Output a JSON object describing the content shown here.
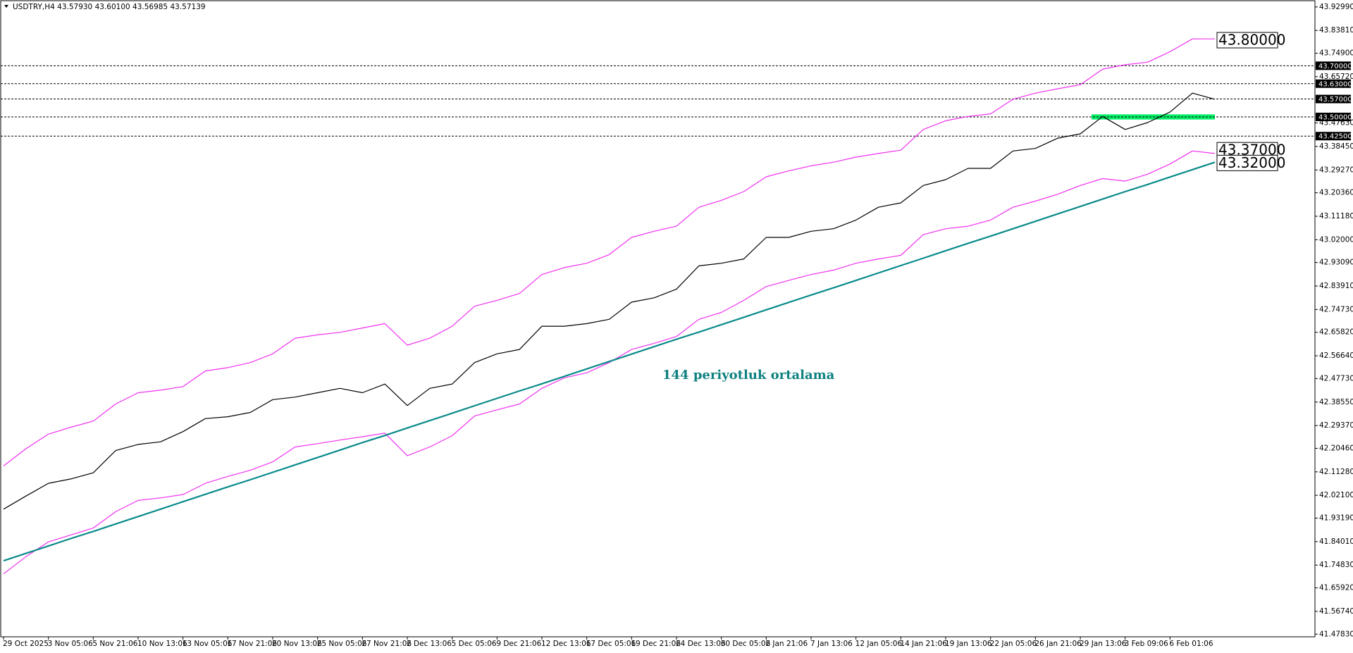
{
  "chart_data": {
    "type": "line",
    "title": "USDTRY,H4  43.57930 43.60100 43.56985 43.57139",
    "annotation": "144 periyotluk ortalama",
    "categories": [
      "29 Oct 2025",
      null,
      "3 Nov 05:06",
      null,
      "5 Nov 21:06",
      null,
      "10 Nov 13:06",
      null,
      "13 Nov 05:06",
      null,
      "17 Nov 21:06",
      null,
      "20 Nov 13:06",
      null,
      "25 Nov 05:06",
      null,
      "27 Nov 21:06",
      null,
      "2 Dec 13:06",
      null,
      "5 Dec 05:06",
      null,
      "9 Dec 21:06",
      null,
      "12 Dec 13:06",
      null,
      "17 Dec 05:06",
      null,
      "19 Dec 21:06",
      null,
      "24 Dec 13:06",
      null,
      "30 Dec 05:06",
      null,
      "2 Jan 21:06",
      null,
      "7 Jan 13:06",
      null,
      "12 Jan 05:06",
      null,
      "14 Jan 21:06",
      null,
      "19 Jan 13:06",
      null,
      "22 Jan 05:06",
      null,
      "26 Jan 21:06",
      null,
      "29 Jan 13:06",
      null,
      "3 Feb 09:06",
      null,
      "6 Feb 01:06",
      null,
      null
    ],
    "series": [
      {
        "color": "#000000",
        "values": [
          41.967,
          42.018,
          42.068,
          42.085,
          42.109,
          42.196,
          42.22,
          42.23,
          42.27,
          42.321,
          42.328,
          42.345,
          42.395,
          42.405,
          42.422,
          42.439,
          42.422,
          42.456,
          42.372,
          42.439,
          42.456,
          42.54,
          42.574,
          42.591,
          42.682,
          42.682,
          42.692,
          42.709,
          42.776,
          42.793,
          42.827,
          42.918,
          42.928,
          42.945,
          43.029,
          43.029,
          43.053,
          43.063,
          43.097,
          43.147,
          43.164,
          43.232,
          43.255,
          43.299,
          43.299,
          43.367,
          43.377,
          43.417,
          43.434,
          43.502,
          43.451,
          43.478,
          43.519,
          43.593,
          43.569
        ]
      },
      {
        "color": "#f030f0",
        "values": [
          42.136,
          42.203,
          42.26,
          42.287,
          42.311,
          42.378,
          42.422,
          42.432,
          42.446,
          42.507,
          42.52,
          42.54,
          42.574,
          42.635,
          42.648,
          42.658,
          42.675,
          42.692,
          42.608,
          42.635,
          42.682,
          42.76,
          42.783,
          42.81,
          42.884,
          42.911,
          42.928,
          42.962,
          43.029,
          43.053,
          43.073,
          43.147,
          43.174,
          43.208,
          43.266,
          43.289,
          43.309,
          43.323,
          43.343,
          43.357,
          43.37,
          43.451,
          43.485,
          43.502,
          43.512,
          43.569,
          43.593,
          43.61,
          43.626,
          43.687,
          43.704,
          43.714,
          43.755,
          43.805,
          43.805
        ]
      },
      {
        "color": "#f030f0",
        "values": [
          41.714,
          41.781,
          41.839,
          41.866,
          41.893,
          41.957,
          42.001,
          42.011,
          42.024,
          42.068,
          42.095,
          42.119,
          42.152,
          42.21,
          42.223,
          42.237,
          42.25,
          42.264,
          42.176,
          42.21,
          42.254,
          42.331,
          42.355,
          42.378,
          42.439,
          42.48,
          42.5,
          42.54,
          42.591,
          42.615,
          42.642,
          42.709,
          42.736,
          42.783,
          42.837,
          42.861,
          42.884,
          42.901,
          42.928,
          42.945,
          42.959,
          43.04,
          43.063,
          43.073,
          43.097,
          43.147,
          43.171,
          43.198,
          43.232,
          43.259,
          43.249,
          43.276,
          43.316,
          43.367,
          43.357
        ]
      },
      {
        "color": "#0a8a8a",
        "values": [
          41.765,
          41.794,
          41.823,
          41.852,
          41.88,
          41.909,
          41.938,
          41.967,
          41.996,
          42.025,
          42.054,
          42.082,
          42.111,
          42.14,
          42.169,
          42.198,
          42.227,
          42.255,
          42.284,
          42.313,
          42.342,
          42.371,
          42.4,
          42.429,
          42.457,
          42.486,
          42.515,
          42.544,
          42.573,
          42.602,
          42.631,
          42.659,
          42.688,
          42.717,
          42.746,
          42.775,
          42.804,
          42.832,
          42.861,
          42.89,
          42.919,
          42.948,
          42.977,
          43.006,
          43.034,
          43.063,
          43.092,
          43.121,
          43.15,
          43.179,
          43.208,
          43.236,
          43.265,
          43.294,
          43.323
        ]
      }
    ],
    "ylim": [
      41.468,
      43.957
    ],
    "yticks": [
      {
        "value": 43.9299,
        "label": "43.92990"
      },
      {
        "value": 43.8381,
        "label": "43.83810"
      },
      {
        "value": 43.749,
        "label": "43.74900"
      },
      {
        "value": 43.6572,
        "label": "43.65720"
      },
      {
        "value": 43.4763,
        "label": "43.47630"
      },
      {
        "value": 43.3845,
        "label": "43.38450"
      },
      {
        "value": 43.2927,
        "label": "43.29270"
      },
      {
        "value": 43.2036,
        "label": "43.20360"
      },
      {
        "value": 43.1118,
        "label": "43.11180"
      },
      {
        "value": 43.02,
        "label": "43.02000"
      },
      {
        "value": 42.9309,
        "label": "42.93090"
      },
      {
        "value": 42.8391,
        "label": "42.83910"
      },
      {
        "value": 42.7473,
        "label": "42.74730"
      },
      {
        "value": 42.6582,
        "label": "42.65820"
      },
      {
        "value": 42.5664,
        "label": "42.56640"
      },
      {
        "value": 42.4773,
        "label": "42.47730"
      },
      {
        "value": 42.3855,
        "label": "42.38550"
      },
      {
        "value": 42.2937,
        "label": "42.29370"
      },
      {
        "value": 42.2046,
        "label": "42.20460"
      },
      {
        "value": 42.1128,
        "label": "42.11280"
      },
      {
        "value": 42.021,
        "label": "42.02100"
      },
      {
        "value": 41.9319,
        "label": "41.93190"
      },
      {
        "value": 41.8401,
        "label": "41.84010"
      },
      {
        "value": 41.7483,
        "label": "41.74830"
      },
      {
        "value": 41.6592,
        "label": "41.65920"
      },
      {
        "value": 41.5674,
        "label": "41.56740"
      },
      {
        "value": 41.4783,
        "label": "41.47830"
      }
    ],
    "levels": [
      {
        "value": 43.7,
        "label": "43.70000"
      },
      {
        "value": 43.63,
        "label": "43.63000"
      },
      {
        "value": 43.57,
        "label": "43.57000"
      },
      {
        "value": 43.5,
        "label": "43.50000"
      },
      {
        "value": 43.425,
        "label": "43.42500"
      }
    ],
    "price_labels": [
      {
        "value": 43.8,
        "label": "43.80000"
      },
      {
        "value": 43.37,
        "label": "43.37000"
      },
      {
        "value": 43.32,
        "label": "43.32000"
      }
    ],
    "zone": {
      "from": 43.49,
      "to": 43.51,
      "color": "#00ee66"
    },
    "annotation_color": "#0e8080"
  }
}
